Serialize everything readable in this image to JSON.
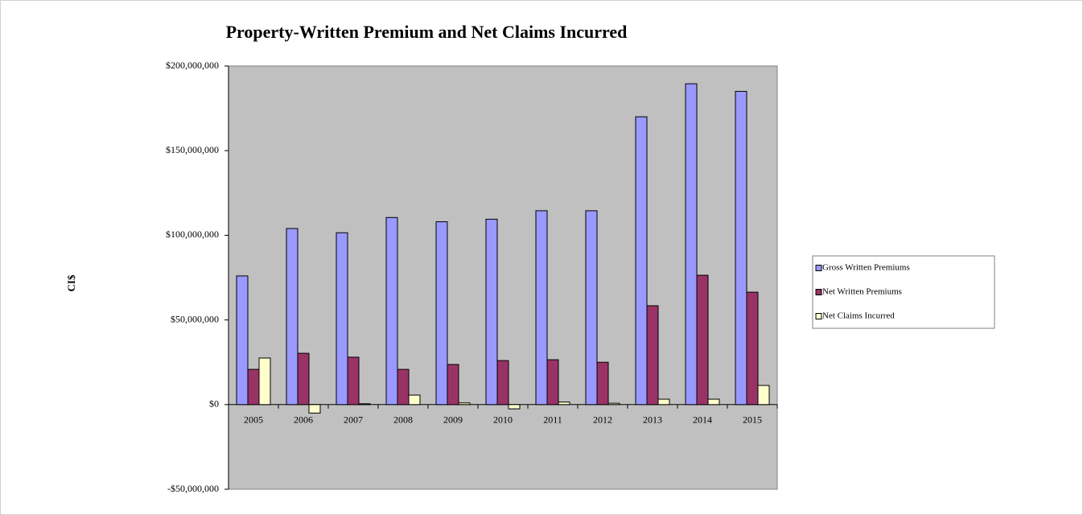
{
  "chart_data": {
    "type": "bar",
    "title": "Property-Written Premium and Net Claims Incurred",
    "y_label": "CI$",
    "categories": [
      "2005",
      "2006",
      "2007",
      "2008",
      "2009",
      "2010",
      "2011",
      "2012",
      "2013",
      "2014",
      "2015"
    ],
    "series": [
      {
        "name": "Gross Written Premiums",
        "color": "#9999ff",
        "values": [
          76000000,
          104000000,
          101500000,
          110500000,
          108000000,
          109500000,
          114500000,
          114500000,
          170000000,
          189500000,
          185000000
        ]
      },
      {
        "name": "Net Written Premiums",
        "color": "#993366",
        "values": [
          20800000,
          30300000,
          28000000,
          20800000,
          23700000,
          26000000,
          26500000,
          25000000,
          58400000,
          76400000,
          66400000
        ]
      },
      {
        "name": "Net Claims Incurred",
        "color": "#ffffcc",
        "values": [
          27500000,
          -5000000,
          500000,
          5600000,
          1000000,
          -2500000,
          1500000,
          800000,
          3200000,
          3200000,
          11300000
        ]
      }
    ],
    "ylim": [
      -50000000,
      200000000
    ],
    "yticks": [
      {
        "value": -50000000,
        "label": "-$50,000,000"
      },
      {
        "value": 0,
        "label": "$0"
      },
      {
        "value": 50000000,
        "label": "$50,000,000"
      },
      {
        "value": 100000000,
        "label": "$100,000,000"
      },
      {
        "value": 150000000,
        "label": "$150,000,000"
      },
      {
        "value": 200000000,
        "label": "$200,000,000"
      }
    ],
    "legend": "right"
  }
}
